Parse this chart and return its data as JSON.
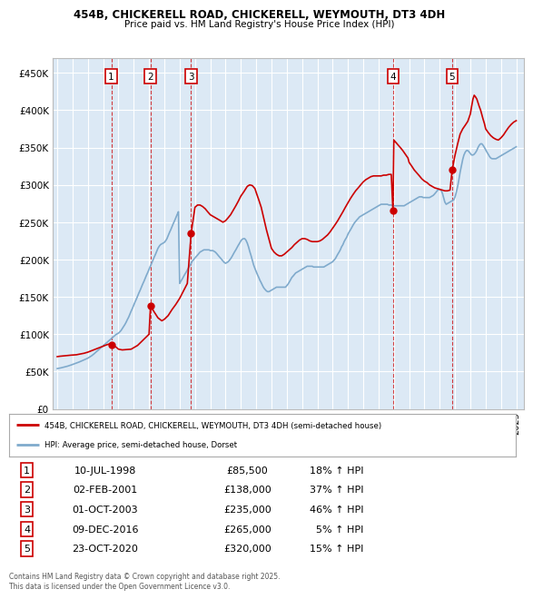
{
  "title_line1": "454B, CHICKERELL ROAD, CHICKERELL, WEYMOUTH, DT3 4DH",
  "title_line2": "Price paid vs. HM Land Registry's House Price Index (HPI)",
  "ylabel_ticks": [
    "£0",
    "£50K",
    "£100K",
    "£150K",
    "£200K",
    "£250K",
    "£300K",
    "£350K",
    "£400K",
    "£450K"
  ],
  "ytick_values": [
    0,
    50000,
    100000,
    150000,
    200000,
    250000,
    300000,
    350000,
    400000,
    450000
  ],
  "ylim": [
    0,
    470000
  ],
  "xlim_start": 1994.7,
  "xlim_end": 2025.5,
  "bg_color": "#dce9f5",
  "grid_color": "#ffffff",
  "sales": [
    {
      "num": 1,
      "date_str": "10-JUL-1998",
      "year": 1998.53,
      "price": 85500,
      "pct": "18%",
      "dir": "↑"
    },
    {
      "num": 2,
      "date_str": "02-FEB-2001",
      "year": 2001.09,
      "price": 138000,
      "pct": "37%",
      "dir": "↑"
    },
    {
      "num": 3,
      "date_str": "01-OCT-2003",
      "year": 2003.75,
      "price": 235000,
      "pct": "46%",
      "dir": "↑"
    },
    {
      "num": 4,
      "date_str": "09-DEC-2016",
      "year": 2016.94,
      "price": 265000,
      "pct": "5%",
      "dir": "↑"
    },
    {
      "num": 5,
      "date_str": "23-OCT-2020",
      "year": 2020.81,
      "price": 320000,
      "pct": "15%",
      "dir": "↑"
    }
  ],
  "legend_line1": "454B, CHICKERELL ROAD, CHICKERELL, WEYMOUTH, DT3 4DH (semi-detached house)",
  "legend_line2": "HPI: Average price, semi-detached house, Dorset",
  "footer": "Contains HM Land Registry data © Crown copyright and database right 2025.\nThis data is licensed under the Open Government Licence v3.0.",
  "property_color": "#cc0000",
  "hpi_color": "#7faacc",
  "sale_marker_color": "#cc0000",
  "vline_color": "#cc0000",
  "hpi_data_x": [
    1995.0,
    1995.08,
    1995.17,
    1995.25,
    1995.33,
    1995.42,
    1995.5,
    1995.58,
    1995.67,
    1995.75,
    1995.83,
    1995.92,
    1996.0,
    1996.08,
    1996.17,
    1996.25,
    1996.33,
    1996.42,
    1996.5,
    1996.58,
    1996.67,
    1996.75,
    1996.83,
    1996.92,
    1997.0,
    1997.08,
    1997.17,
    1997.25,
    1997.33,
    1997.42,
    1997.5,
    1997.58,
    1997.67,
    1997.75,
    1997.83,
    1997.92,
    1998.0,
    1998.08,
    1998.17,
    1998.25,
    1998.33,
    1998.42,
    1998.5,
    1998.58,
    1998.67,
    1998.75,
    1998.83,
    1998.92,
    1999.0,
    1999.08,
    1999.17,
    1999.25,
    1999.33,
    1999.42,
    1999.5,
    1999.58,
    1999.67,
    1999.75,
    1999.83,
    1999.92,
    2000.0,
    2000.08,
    2000.17,
    2000.25,
    2000.33,
    2000.42,
    2000.5,
    2000.58,
    2000.67,
    2000.75,
    2000.83,
    2000.92,
    2001.0,
    2001.08,
    2001.17,
    2001.25,
    2001.33,
    2001.42,
    2001.5,
    2001.58,
    2001.67,
    2001.75,
    2001.83,
    2001.92,
    2002.0,
    2002.08,
    2002.17,
    2002.25,
    2002.33,
    2002.42,
    2002.5,
    2002.58,
    2002.67,
    2002.75,
    2002.83,
    2002.92,
    2003.0,
    2003.08,
    2003.17,
    2003.25,
    2003.33,
    2003.42,
    2003.5,
    2003.58,
    2003.67,
    2003.75,
    2003.83,
    2003.92,
    2004.0,
    2004.08,
    2004.17,
    2004.25,
    2004.33,
    2004.42,
    2004.5,
    2004.58,
    2004.67,
    2004.75,
    2004.83,
    2004.92,
    2005.0,
    2005.08,
    2005.17,
    2005.25,
    2005.33,
    2005.42,
    2005.5,
    2005.58,
    2005.67,
    2005.75,
    2005.83,
    2005.92,
    2006.0,
    2006.08,
    2006.17,
    2006.25,
    2006.33,
    2006.42,
    2006.5,
    2006.58,
    2006.67,
    2006.75,
    2006.83,
    2006.92,
    2007.0,
    2007.08,
    2007.17,
    2007.25,
    2007.33,
    2007.42,
    2007.5,
    2007.58,
    2007.67,
    2007.75,
    2007.83,
    2007.92,
    2008.0,
    2008.08,
    2008.17,
    2008.25,
    2008.33,
    2008.42,
    2008.5,
    2008.58,
    2008.67,
    2008.75,
    2008.83,
    2008.92,
    2009.0,
    2009.08,
    2009.17,
    2009.25,
    2009.33,
    2009.42,
    2009.5,
    2009.58,
    2009.67,
    2009.75,
    2009.83,
    2009.92,
    2010.0,
    2010.08,
    2010.17,
    2010.25,
    2010.33,
    2010.42,
    2010.5,
    2010.58,
    2010.67,
    2010.75,
    2010.83,
    2010.92,
    2011.0,
    2011.08,
    2011.17,
    2011.25,
    2011.33,
    2011.42,
    2011.5,
    2011.58,
    2011.67,
    2011.75,
    2011.83,
    2011.92,
    2012.0,
    2012.08,
    2012.17,
    2012.25,
    2012.33,
    2012.42,
    2012.5,
    2012.58,
    2012.67,
    2012.75,
    2012.83,
    2012.92,
    2013.0,
    2013.08,
    2013.17,
    2013.25,
    2013.33,
    2013.42,
    2013.5,
    2013.58,
    2013.67,
    2013.75,
    2013.83,
    2013.92,
    2014.0,
    2014.08,
    2014.17,
    2014.25,
    2014.33,
    2014.42,
    2014.5,
    2014.58,
    2014.67,
    2014.75,
    2014.83,
    2014.92,
    2015.0,
    2015.08,
    2015.17,
    2015.25,
    2015.33,
    2015.42,
    2015.5,
    2015.58,
    2015.67,
    2015.75,
    2015.83,
    2015.92,
    2016.0,
    2016.08,
    2016.17,
    2016.25,
    2016.33,
    2016.42,
    2016.5,
    2016.58,
    2016.67,
    2016.75,
    2016.83,
    2016.92,
    2017.0,
    2017.08,
    2017.17,
    2017.25,
    2017.33,
    2017.42,
    2017.5,
    2017.58,
    2017.67,
    2017.75,
    2017.83,
    2017.92,
    2018.0,
    2018.08,
    2018.17,
    2018.25,
    2018.33,
    2018.42,
    2018.5,
    2018.58,
    2018.67,
    2018.75,
    2018.83,
    2018.92,
    2019.0,
    2019.08,
    2019.17,
    2019.25,
    2019.33,
    2019.42,
    2019.5,
    2019.58,
    2019.67,
    2019.75,
    2019.83,
    2019.92,
    2020.0,
    2020.08,
    2020.17,
    2020.25,
    2020.33,
    2020.42,
    2020.5,
    2020.58,
    2020.67,
    2020.75,
    2020.83,
    2020.92,
    2021.0,
    2021.08,
    2021.17,
    2021.25,
    2021.33,
    2021.42,
    2021.5,
    2021.58,
    2021.67,
    2021.75,
    2021.83,
    2021.92,
    2022.0,
    2022.08,
    2022.17,
    2022.25,
    2022.33,
    2022.42,
    2022.5,
    2022.58,
    2022.67,
    2022.75,
    2022.83,
    2022.92,
    2023.0,
    2023.08,
    2023.17,
    2023.25,
    2023.33,
    2023.42,
    2023.5,
    2023.58,
    2023.67,
    2023.75,
    2023.83,
    2023.92,
    2024.0,
    2024.08,
    2024.17,
    2024.25,
    2024.33,
    2024.42,
    2024.5,
    2024.58,
    2024.67,
    2024.75,
    2024.83,
    2024.92,
    2025.0
  ],
  "hpi_data_y": [
    54000,
    54300,
    54600,
    55000,
    55400,
    55800,
    56200,
    56700,
    57200,
    57700,
    58300,
    58900,
    59500,
    60100,
    60700,
    61400,
    62000,
    62700,
    63400,
    64100,
    64800,
    65600,
    66400,
    67200,
    68000,
    69000,
    70000,
    71200,
    72500,
    74000,
    75500,
    77000,
    78500,
    80000,
    81500,
    83000,
    84500,
    86000,
    87500,
    89000,
    90500,
    92000,
    93500,
    95000,
    96500,
    98000,
    99500,
    100500,
    101500,
    103000,
    105000,
    107500,
    110000,
    113000,
    116000,
    119500,
    123000,
    127000,
    131000,
    135000,
    139000,
    143000,
    147000,
    151000,
    155000,
    159000,
    163000,
    167000,
    171000,
    175000,
    179000,
    183000,
    187000,
    191000,
    195000,
    199000,
    203000,
    207000,
    211000,
    215000,
    218000,
    220000,
    221000,
    222000,
    223000,
    225000,
    228000,
    232000,
    236000,
    240000,
    244000,
    248000,
    252000,
    256000,
    260000,
    264000,
    168000,
    171000,
    174000,
    177000,
    180000,
    183000,
    186000,
    189000,
    192000,
    195000,
    198000,
    200000,
    202000,
    204000,
    206000,
    208000,
    210000,
    211000,
    212000,
    213000,
    213000,
    213000,
    213000,
    213000,
    212000,
    212000,
    212000,
    211000,
    210000,
    208000,
    206000,
    204000,
    202000,
    200000,
    198000,
    196000,
    195000,
    196000,
    197000,
    199000,
    201000,
    204000,
    207000,
    210000,
    213000,
    216000,
    219000,
    222000,
    225000,
    227000,
    228000,
    228000,
    226000,
    222000,
    217000,
    211000,
    205000,
    199000,
    193000,
    188000,
    184000,
    180000,
    176000,
    172000,
    169000,
    165000,
    162000,
    160000,
    158000,
    157000,
    157000,
    158000,
    159000,
    160000,
    161000,
    162000,
    163000,
    163000,
    163000,
    163000,
    163000,
    163000,
    163000,
    163000,
    165000,
    167000,
    170000,
    173000,
    176000,
    178000,
    180000,
    182000,
    183000,
    184000,
    185000,
    186000,
    187000,
    188000,
    189000,
    190000,
    191000,
    191000,
    191000,
    191000,
    191000,
    190000,
    190000,
    190000,
    190000,
    190000,
    190000,
    190000,
    190000,
    190000,
    191000,
    192000,
    193000,
    194000,
    195000,
    196000,
    197000,
    199000,
    201000,
    204000,
    207000,
    210000,
    213000,
    217000,
    220000,
    224000,
    227000,
    230000,
    234000,
    237000,
    240000,
    243000,
    246000,
    249000,
    251000,
    253000,
    255000,
    257000,
    258000,
    259000,
    260000,
    261000,
    262000,
    263000,
    264000,
    265000,
    266000,
    267000,
    268000,
    269000,
    270000,
    271000,
    272000,
    273000,
    274000,
    274000,
    274000,
    274000,
    274000,
    274000,
    273000,
    273000,
    273000,
    272000,
    272000,
    272000,
    272000,
    272000,
    272000,
    272000,
    272000,
    272000,
    272000,
    273000,
    274000,
    275000,
    276000,
    277000,
    278000,
    279000,
    280000,
    281000,
    282000,
    283000,
    284000,
    284000,
    284000,
    283000,
    283000,
    283000,
    283000,
    283000,
    283000,
    284000,
    285000,
    286000,
    288000,
    290000,
    292000,
    294000,
    294000,
    293000,
    289000,
    283000,
    277000,
    274000,
    275000,
    276000,
    277000,
    278000,
    279000,
    280000,
    284000,
    290000,
    298000,
    307000,
    317000,
    326000,
    334000,
    340000,
    344000,
    346000,
    346000,
    344000,
    342000,
    340000,
    340000,
    341000,
    343000,
    346000,
    350000,
    353000,
    355000,
    355000,
    353000,
    350000,
    347000,
    344000,
    341000,
    338000,
    336000,
    335000,
    335000,
    335000,
    335000,
    336000,
    337000,
    338000,
    339000,
    340000,
    341000,
    342000,
    343000,
    344000,
    345000,
    346000,
    347000,
    348000,
    349000,
    350000,
    351000,
    352000,
    353000,
    354000,
    354000,
    354000,
    354000,
    353000,
    352000,
    351000,
    350000,
    349000,
    349000
  ],
  "property_data_x": [
    1995.0,
    1995.17,
    1995.42,
    1995.67,
    1995.92,
    1996.25,
    1996.5,
    1996.75,
    1997.0,
    1997.25,
    1997.5,
    1997.75,
    1998.0,
    1998.25,
    1998.42,
    1998.53,
    1998.67,
    1998.83,
    1999.0,
    1999.25,
    1999.58,
    1999.83,
    2000.0,
    2000.25,
    2000.5,
    2000.75,
    2001.0,
    2001.09,
    2001.33,
    2001.58,
    2001.83,
    2002.0,
    2002.25,
    2002.5,
    2002.75,
    2003.0,
    2003.25,
    2003.5,
    2003.75,
    2004.0,
    2004.17,
    2004.33,
    2004.5,
    2004.67,
    2004.83,
    2005.0,
    2005.17,
    2005.33,
    2005.5,
    2005.67,
    2005.83,
    2006.0,
    2006.17,
    2006.33,
    2006.5,
    2006.67,
    2006.83,
    2007.0,
    2007.17,
    2007.33,
    2007.42,
    2007.58,
    2007.75,
    2007.92,
    2008.0,
    2008.17,
    2008.33,
    2008.5,
    2008.67,
    2008.83,
    2009.0,
    2009.17,
    2009.33,
    2009.5,
    2009.67,
    2009.83,
    2010.0,
    2010.17,
    2010.33,
    2010.5,
    2010.67,
    2010.83,
    2011.0,
    2011.17,
    2011.33,
    2011.5,
    2011.67,
    2011.83,
    2012.0,
    2012.17,
    2012.33,
    2012.5,
    2012.67,
    2012.83,
    2013.0,
    2013.17,
    2013.33,
    2013.5,
    2013.67,
    2013.83,
    2014.0,
    2014.17,
    2014.33,
    2014.5,
    2014.67,
    2014.83,
    2015.0,
    2015.17,
    2015.33,
    2015.5,
    2015.67,
    2015.83,
    2016.0,
    2016.17,
    2016.33,
    2016.5,
    2016.67,
    2016.83,
    2016.94,
    2017.0,
    2017.08,
    2017.17,
    2017.25,
    2017.42,
    2017.58,
    2017.75,
    2017.92,
    2018.0,
    2018.17,
    2018.33,
    2018.5,
    2018.67,
    2018.83,
    2019.0,
    2019.17,
    2019.33,
    2019.5,
    2019.67,
    2019.83,
    2020.0,
    2020.17,
    2020.33,
    2020.5,
    2020.67,
    2020.81,
    2021.0,
    2021.17,
    2021.33,
    2021.5,
    2021.67,
    2021.83,
    2022.0,
    2022.08,
    2022.17,
    2022.25,
    2022.33,
    2022.42,
    2022.5,
    2022.58,
    2022.67,
    2022.75,
    2022.83,
    2022.92,
    2023.0,
    2023.17,
    2023.33,
    2023.5,
    2023.67,
    2023.83,
    2024.0,
    2024.17,
    2024.33,
    2024.5,
    2024.67,
    2024.83,
    2025.0
  ],
  "property_data_y": [
    70000,
    70500,
    71000,
    71500,
    72000,
    72500,
    73500,
    74500,
    76000,
    78000,
    80000,
    82000,
    84000,
    86000,
    87000,
    85500,
    84000,
    83000,
    80000,
    79000,
    79500,
    80000,
    82000,
    85000,
    90000,
    95000,
    100000,
    138000,
    130000,
    122000,
    118000,
    120000,
    125000,
    133000,
    140000,
    148000,
    158000,
    168000,
    235000,
    270000,
    273000,
    273000,
    271000,
    268000,
    264000,
    260000,
    258000,
    256000,
    254000,
    252000,
    250000,
    252000,
    256000,
    260000,
    266000,
    272000,
    278000,
    285000,
    290000,
    295000,
    298000,
    300000,
    299000,
    295000,
    290000,
    280000,
    270000,
    255000,
    240000,
    228000,
    215000,
    210000,
    207000,
    205000,
    205000,
    207000,
    210000,
    213000,
    216000,
    220000,
    223000,
    226000,
    228000,
    228000,
    227000,
    225000,
    224000,
    224000,
    224000,
    225000,
    227000,
    230000,
    233000,
    237000,
    242000,
    247000,
    252000,
    258000,
    264000,
    270000,
    276000,
    282000,
    287000,
    292000,
    296000,
    300000,
    304000,
    307000,
    309000,
    311000,
    312000,
    312000,
    312000,
    312000,
    313000,
    313000,
    314000,
    314000,
    265000,
    360000,
    358000,
    356000,
    354000,
    350000,
    346000,
    341000,
    336000,
    330000,
    325000,
    320000,
    316000,
    312000,
    308000,
    305000,
    303000,
    300000,
    298000,
    296000,
    295000,
    294000,
    293000,
    292000,
    292000,
    293000,
    320000,
    340000,
    355000,
    368000,
    375000,
    380000,
    385000,
    395000,
    405000,
    415000,
    420000,
    418000,
    415000,
    410000,
    405000,
    400000,
    394000,
    388000,
    382000,
    375000,
    370000,
    366000,
    363000,
    361000,
    360000,
    363000,
    367000,
    372000,
    377000,
    381000,
    384000,
    386000
  ]
}
